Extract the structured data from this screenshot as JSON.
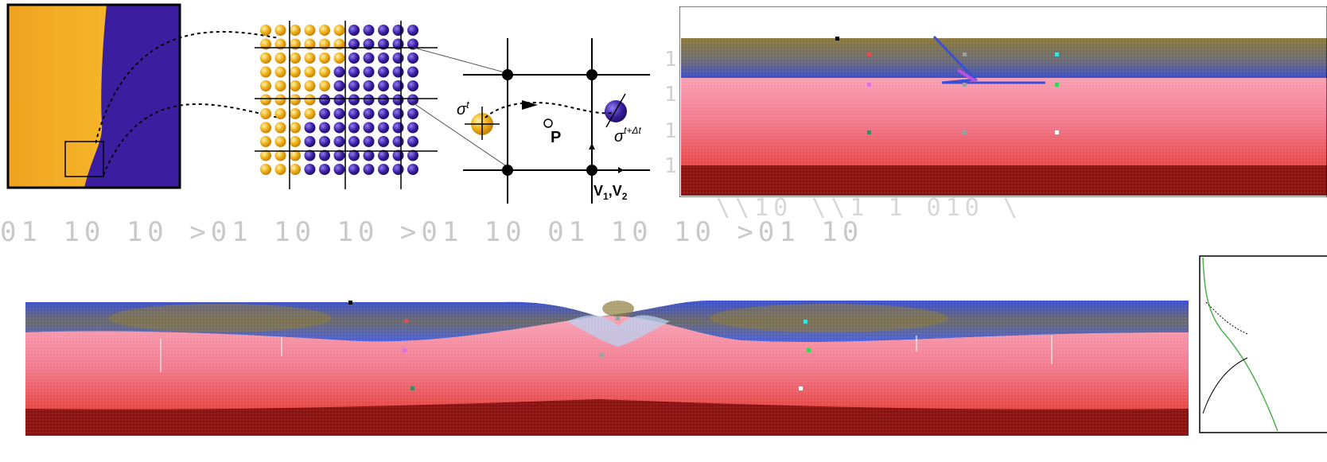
{
  "panel_c": {
    "sigma_t": "σ",
    "sigma_t_sup": "t",
    "sigma_tdt_sup": "t+Δt",
    "p_label": "P",
    "v_label": "V",
    "v_sub1": "1",
    "v_sep": ",V",
    "v_sub2": "2"
  },
  "colors": {
    "orange": "#f0a321",
    "purple": "#3b1ea0",
    "pink": "#f27a8e",
    "dark_red": "#8a1210",
    "blue_band": "#3a4fd6",
    "olive": "#8c7a3a"
  },
  "background_digits": {
    "row_main": "01  10   10  >01  10   10  >01  10   01  10   10  >01  10",
    "row_upper": "\\\\10     \\\\1   1 010      \\"
  },
  "side_marks": [
    "1",
    "1",
    "1",
    "1"
  ]
}
